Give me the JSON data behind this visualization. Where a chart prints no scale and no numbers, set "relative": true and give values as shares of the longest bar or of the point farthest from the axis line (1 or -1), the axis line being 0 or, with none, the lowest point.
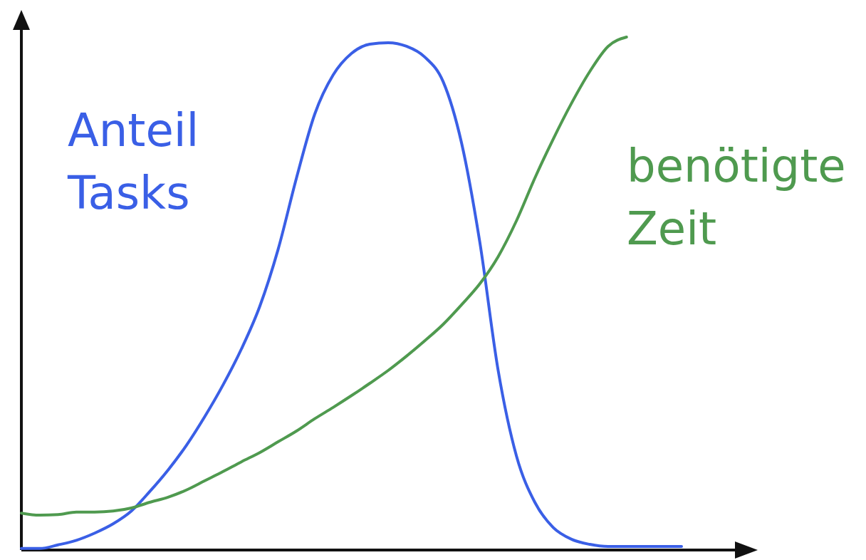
{
  "chart_data": {
    "type": "line",
    "relative": true,
    "legend": false,
    "marker": "none",
    "line_style": "solid",
    "categories": [
      null,
      null,
      null,
      null,
      null,
      null,
      null,
      null,
      null,
      null,
      null,
      null,
      null,
      null,
      null,
      null,
      null,
      null,
      null,
      null,
      null,
      null,
      null,
      null,
      null,
      null,
      null,
      null,
      null,
      null,
      null,
      null,
      null,
      null,
      null,
      null,
      null,
      null,
      null,
      null,
      null
    ],
    "series": [
      {
        "name": "Anteil Tasks",
        "color": "#3a5fe6",
        "values": [
          0.003,
          0.003,
          0.01,
          0.019,
          0.033,
          0.051,
          0.076,
          0.114,
          0.156,
          0.204,
          0.26,
          0.322,
          0.392,
          0.475,
          0.586,
          0.725,
          0.85,
          0.926,
          0.968,
          0.986,
          0.989,
          0.982,
          0.961,
          0.913,
          0.794,
          0.6,
          0.35,
          0.183,
          0.093,
          0.044,
          0.021,
          0.011,
          0.007,
          0.007,
          0.007,
          0.007,
          0.007,
          null,
          null,
          null,
          null
        ]
      },
      {
        "name": "benötigte Zeit",
        "color": "#4f9a4f",
        "values": [
          0.072,
          0.068,
          0.069,
          0.074,
          0.074,
          0.076,
          0.082,
          0.093,
          0.103,
          0.117,
          0.135,
          0.153,
          0.172,
          0.19,
          0.211,
          0.232,
          0.256,
          0.278,
          0.301,
          0.325,
          0.35,
          0.378,
          0.408,
          0.44,
          0.478,
          0.519,
          0.572,
          0.642,
          0.725,
          0.801,
          0.871,
          0.933,
          0.982,
          1,
          null,
          null,
          null,
          null,
          null,
          null,
          null
        ]
      }
    ]
  }
}
